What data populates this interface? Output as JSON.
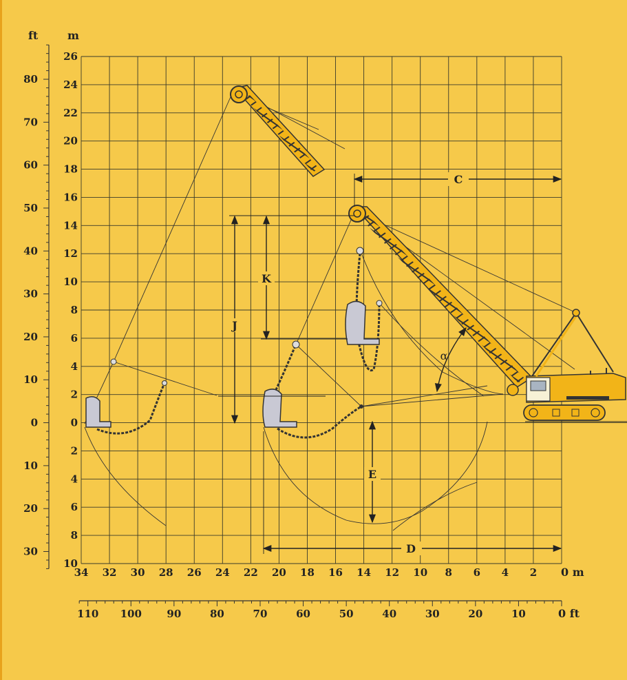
{
  "units": {
    "left_ft": "ft",
    "left_m": "m",
    "bottom_m": "0 m",
    "bottom_ft": "0 ft"
  },
  "left_m_ticks": [
    "26",
    "24",
    "22",
    "20",
    "18",
    "16",
    "14",
    "12",
    "10",
    "8",
    "6",
    "4",
    "2",
    "0",
    "2",
    "4",
    "6",
    "8",
    "10"
  ],
  "left_ft_ticks": [
    "80",
    "70",
    "60",
    "50",
    "40",
    "30",
    "20",
    "10",
    "0",
    "10",
    "20",
    "30"
  ],
  "bottom_m_ticks": [
    "34",
    "32",
    "30",
    "28",
    "26",
    "24",
    "22",
    "20",
    "18",
    "16",
    "14",
    "12",
    "10",
    "8",
    "6",
    "4",
    "2"
  ],
  "bottom_ft_ticks": [
    "110",
    "100",
    "90",
    "80",
    "70",
    "60",
    "50",
    "40",
    "30",
    "20",
    "10"
  ],
  "dimensions": {
    "C": "C",
    "D": "D",
    "E": "E",
    "J": "J",
    "K": "K",
    "alpha": "α"
  },
  "colors": {
    "background": "#f6c94a",
    "grid": "#3a3a2a",
    "boom": "#f2b418",
    "bucket": "#c9c9d4",
    "ink": "#222222"
  }
}
